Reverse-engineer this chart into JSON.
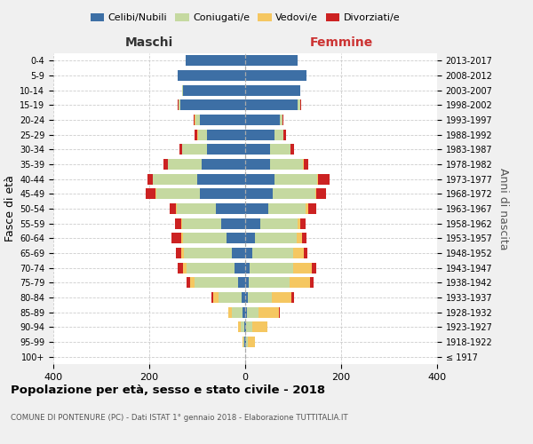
{
  "age_groups": [
    "100+",
    "95-99",
    "90-94",
    "85-89",
    "80-84",
    "75-79",
    "70-74",
    "65-69",
    "60-64",
    "55-59",
    "50-54",
    "45-49",
    "40-44",
    "35-39",
    "30-34",
    "25-29",
    "20-24",
    "15-19",
    "10-14",
    "5-9",
    "0-4"
  ],
  "birth_years": [
    "≤ 1917",
    "1918-1922",
    "1923-1927",
    "1928-1932",
    "1933-1937",
    "1938-1942",
    "1943-1947",
    "1948-1952",
    "1953-1957",
    "1958-1962",
    "1963-1967",
    "1968-1972",
    "1973-1977",
    "1978-1982",
    "1983-1987",
    "1988-1992",
    "1993-1997",
    "1998-2002",
    "2003-2007",
    "2008-2012",
    "2013-2017"
  ],
  "colors": {
    "celibe": "#3d6fa5",
    "coniugato": "#c5d9a0",
    "vedovo": "#f5c761",
    "divorziato": "#cc2222"
  },
  "males": {
    "celibe": [
      0,
      1,
      2,
      5,
      8,
      15,
      22,
      28,
      38,
      50,
      62,
      95,
      100,
      90,
      80,
      80,
      95,
      135,
      130,
      140,
      125
    ],
    "coniugato": [
      0,
      2,
      8,
      22,
      48,
      90,
      100,
      100,
      92,
      82,
      80,
      90,
      92,
      72,
      52,
      18,
      8,
      4,
      2,
      0,
      0
    ],
    "vedovo": [
      0,
      2,
      5,
      8,
      10,
      10,
      8,
      5,
      3,
      2,
      2,
      2,
      0,
      0,
      0,
      2,
      2,
      0,
      0,
      0,
      0
    ],
    "divorziato": [
      0,
      0,
      0,
      0,
      5,
      8,
      10,
      12,
      20,
      12,
      14,
      20,
      12,
      8,
      5,
      5,
      2,
      2,
      0,
      0,
      0
    ]
  },
  "females": {
    "nubile": [
      0,
      1,
      2,
      3,
      5,
      8,
      10,
      15,
      20,
      32,
      48,
      58,
      62,
      52,
      52,
      62,
      72,
      110,
      115,
      128,
      110
    ],
    "coniugata": [
      0,
      5,
      12,
      25,
      50,
      85,
      90,
      85,
      88,
      78,
      78,
      88,
      88,
      68,
      42,
      18,
      5,
      4,
      0,
      0,
      0
    ],
    "vedova": [
      0,
      15,
      32,
      42,
      42,
      42,
      38,
      22,
      10,
      5,
      5,
      3,
      2,
      2,
      0,
      0,
      0,
      0,
      0,
      0,
      0
    ],
    "divorziata": [
      0,
      0,
      0,
      2,
      5,
      8,
      10,
      8,
      10,
      10,
      18,
      20,
      24,
      10,
      8,
      5,
      2,
      2,
      0,
      0,
      0
    ]
  },
  "title": "Popolazione per età, sesso e stato civile - 2018",
  "subtitle": "COMUNE DI PONTENURE (PC) - Dati ISTAT 1° gennaio 2018 - Elaborazione TUTTITALIA.IT",
  "ylabel_left": "Fasce di età",
  "ylabel_right": "Anni di nascita",
  "xlabel_males": "Maschi",
  "xlabel_females": "Femmine",
  "xlim": 400,
  "bg_color": "#f0f0f0",
  "plot_bg": "#ffffff",
  "legend_labels": [
    "Celibi/Nubili",
    "Coniugati/e",
    "Vedovi/e",
    "Divorziati/e"
  ]
}
